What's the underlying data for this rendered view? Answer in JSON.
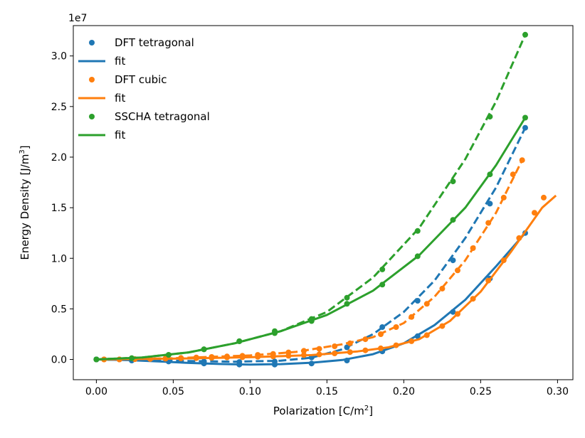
{
  "chart_data": {
    "type": "line",
    "xlabel": "Polarization [C/m",
    "xlabel_sup": "2",
    "xlabel_end": "]",
    "ylabel": "Energy Density [J/m",
    "ylabel_sup": "3",
    "ylabel_end": "]",
    "y_offset_text": "1e7",
    "xlim": [
      -0.015,
      0.31
    ],
    "ylim": [
      -0.2,
      3.3
    ],
    "x_ticks": [
      0.0,
      0.05,
      0.1,
      0.15,
      0.2,
      0.25,
      0.3
    ],
    "x_tick_labels": [
      "0.00",
      "0.05",
      "0.10",
      "0.15",
      "0.20",
      "0.25",
      "0.30"
    ],
    "y_ticks": [
      0.0,
      0.5,
      1.0,
      1.5,
      2.0,
      2.5,
      3.0
    ],
    "y_tick_labels": [
      "0.0",
      "0.5",
      "1.0",
      "1.5",
      "2.0",
      "2.5",
      "3.0"
    ],
    "grid": false,
    "legend_position": "top-left",
    "colors": {
      "blue": "#1f77b4",
      "orange": "#ff7f0e",
      "green": "#2ca02c"
    },
    "legend": [
      {
        "label": "DFT tetragonal",
        "kind": "marker",
        "color": "#1f77b4"
      },
      {
        "label": "fit",
        "kind": "line",
        "color": "#1f77b4"
      },
      {
        "label": "DFT cubic",
        "kind": "marker",
        "color": "#ff7f0e"
      },
      {
        "label": "fit",
        "kind": "line",
        "color": "#ff7f0e"
      },
      {
        "label": "SSCHA tetragonal",
        "kind": "marker",
        "color": "#2ca02c"
      },
      {
        "label": "fit",
        "kind": "line",
        "color": "#2ca02c"
      }
    ],
    "series": [
      {
        "name": "DFT tetragonal",
        "color": "#1f77b4",
        "style": "solid",
        "points": [
          [
            0.0,
            0.0
          ],
          [
            0.023,
            -0.01
          ],
          [
            0.047,
            -0.02
          ],
          [
            0.07,
            -0.04
          ],
          [
            0.093,
            -0.05
          ],
          [
            0.116,
            -0.05
          ],
          [
            0.14,
            -0.04
          ],
          [
            0.163,
            -0.01
          ],
          [
            0.186,
            0.08
          ],
          [
            0.209,
            0.23
          ],
          [
            0.232,
            0.47
          ],
          [
            0.256,
            0.8
          ],
          [
            0.279,
            1.25
          ]
        ],
        "fit": [
          [
            0.0,
            0.0
          ],
          [
            0.02,
            -0.006
          ],
          [
            0.04,
            -0.019
          ],
          [
            0.06,
            -0.034
          ],
          [
            0.08,
            -0.045
          ],
          [
            0.1,
            -0.05
          ],
          [
            0.12,
            -0.046
          ],
          [
            0.14,
            -0.032
          ],
          [
            0.16,
            -0.005
          ],
          [
            0.18,
            0.052
          ],
          [
            0.2,
            0.16
          ],
          [
            0.22,
            0.34
          ],
          [
            0.24,
            0.59
          ],
          [
            0.26,
            0.92
          ],
          [
            0.279,
            1.25
          ]
        ]
      },
      {
        "name": "DFT tetragonal",
        "color": "#1f77b4",
        "style": "dashed",
        "points": [
          [
            0.0,
            0.0
          ],
          [
            0.023,
            -0.005
          ],
          [
            0.047,
            -0.01
          ],
          [
            0.07,
            -0.02
          ],
          [
            0.093,
            -0.025
          ],
          [
            0.116,
            -0.02
          ],
          [
            0.14,
            0.02
          ],
          [
            0.163,
            0.12
          ],
          [
            0.186,
            0.32
          ],
          [
            0.209,
            0.58
          ],
          [
            0.232,
            0.98
          ],
          [
            0.256,
            1.54
          ],
          [
            0.279,
            2.29
          ]
        ],
        "fit": [
          [
            0.0,
            0.0
          ],
          [
            0.03,
            -0.006
          ],
          [
            0.06,
            -0.015
          ],
          [
            0.09,
            -0.022
          ],
          [
            0.12,
            -0.012
          ],
          [
            0.14,
            0.018
          ],
          [
            0.16,
            0.1
          ],
          [
            0.18,
            0.25
          ],
          [
            0.2,
            0.47
          ],
          [
            0.22,
            0.78
          ],
          [
            0.24,
            1.2
          ],
          [
            0.26,
            1.7
          ],
          [
            0.279,
            2.29
          ]
        ]
      },
      {
        "name": "DFT cubic",
        "color": "#ff7f0e",
        "style": "solid",
        "points": [
          [
            0.005,
            0.0
          ],
          [
            0.015,
            0.0
          ],
          [
            0.025,
            0.003
          ],
          [
            0.035,
            0.005
          ],
          [
            0.045,
            0.008
          ],
          [
            0.055,
            0.01
          ],
          [
            0.065,
            0.013
          ],
          [
            0.075,
            0.016
          ],
          [
            0.085,
            0.02
          ],
          [
            0.095,
            0.022
          ],
          [
            0.105,
            0.026
          ],
          [
            0.115,
            0.03
          ],
          [
            0.125,
            0.036
          ],
          [
            0.135,
            0.043
          ],
          [
            0.145,
            0.05
          ],
          [
            0.155,
            0.06
          ],
          [
            0.165,
            0.073
          ],
          [
            0.175,
            0.09
          ],
          [
            0.185,
            0.11
          ],
          [
            0.195,
            0.14
          ],
          [
            0.205,
            0.18
          ],
          [
            0.215,
            0.24
          ],
          [
            0.225,
            0.33
          ],
          [
            0.235,
            0.45
          ],
          [
            0.245,
            0.6
          ],
          [
            0.255,
            0.78
          ],
          [
            0.265,
            0.98
          ],
          [
            0.275,
            1.2
          ],
          [
            0.285,
            1.45
          ],
          [
            0.291,
            1.6
          ]
        ],
        "fit": [
          [
            0.0,
            0.0
          ],
          [
            0.05,
            0.008
          ],
          [
            0.1,
            0.022
          ],
          [
            0.14,
            0.043
          ],
          [
            0.17,
            0.08
          ],
          [
            0.19,
            0.12
          ],
          [
            0.21,
            0.2
          ],
          [
            0.23,
            0.38
          ],
          [
            0.25,
            0.67
          ],
          [
            0.27,
            1.07
          ],
          [
            0.29,
            1.5
          ],
          [
            0.299,
            1.62
          ]
        ]
      },
      {
        "name": "DFT cubic",
        "color": "#ff7f0e",
        "style": "dashed",
        "points": [
          [
            0.005,
            0.0
          ],
          [
            0.015,
            0.0
          ],
          [
            0.025,
            0.003
          ],
          [
            0.035,
            0.006
          ],
          [
            0.045,
            0.01
          ],
          [
            0.055,
            0.015
          ],
          [
            0.065,
            0.02
          ],
          [
            0.075,
            0.025
          ],
          [
            0.085,
            0.03
          ],
          [
            0.095,
            0.036
          ],
          [
            0.105,
            0.045
          ],
          [
            0.115,
            0.055
          ],
          [
            0.125,
            0.07
          ],
          [
            0.135,
            0.085
          ],
          [
            0.145,
            0.105
          ],
          [
            0.155,
            0.13
          ],
          [
            0.165,
            0.16
          ],
          [
            0.175,
            0.2
          ],
          [
            0.185,
            0.25
          ],
          [
            0.195,
            0.32
          ],
          [
            0.205,
            0.42
          ],
          [
            0.215,
            0.55
          ],
          [
            0.225,
            0.7
          ],
          [
            0.235,
            0.88
          ],
          [
            0.245,
            1.1
          ],
          [
            0.255,
            1.35
          ],
          [
            0.265,
            1.6
          ],
          [
            0.271,
            1.83
          ],
          [
            0.277,
            1.97
          ]
        ],
        "fit": [
          [
            0.0,
            0.0
          ],
          [
            0.05,
            0.012
          ],
          [
            0.1,
            0.04
          ],
          [
            0.13,
            0.075
          ],
          [
            0.16,
            0.15
          ],
          [
            0.18,
            0.22
          ],
          [
            0.2,
            0.36
          ],
          [
            0.22,
            0.62
          ],
          [
            0.24,
            0.98
          ],
          [
            0.26,
            1.45
          ],
          [
            0.277,
            1.97
          ]
        ]
      },
      {
        "name": "SSCHA tetragonal",
        "color": "#2ca02c",
        "style": "solid",
        "points": [
          [
            0.0,
            0.0
          ],
          [
            0.023,
            0.013
          ],
          [
            0.047,
            0.045
          ],
          [
            0.07,
            0.1
          ],
          [
            0.093,
            0.18
          ],
          [
            0.116,
            0.28
          ],
          [
            0.14,
            0.38
          ],
          [
            0.163,
            0.55
          ],
          [
            0.186,
            0.74
          ],
          [
            0.209,
            1.02
          ],
          [
            0.232,
            1.38
          ],
          [
            0.256,
            1.83
          ],
          [
            0.279,
            2.39
          ]
        ],
        "fit": [
          [
            0.0,
            0.0
          ],
          [
            0.03,
            0.02
          ],
          [
            0.06,
            0.07
          ],
          [
            0.09,
            0.16
          ],
          [
            0.12,
            0.28
          ],
          [
            0.15,
            0.44
          ],
          [
            0.18,
            0.68
          ],
          [
            0.21,
            1.03
          ],
          [
            0.24,
            1.5
          ],
          [
            0.26,
            1.92
          ],
          [
            0.279,
            2.39
          ]
        ]
      },
      {
        "name": "SSCHA tetragonal",
        "color": "#2ca02c",
        "style": "dashed",
        "points": [
          [
            0.0,
            0.0
          ],
          [
            0.023,
            0.012
          ],
          [
            0.047,
            0.045
          ],
          [
            0.07,
            0.1
          ],
          [
            0.093,
            0.18
          ],
          [
            0.116,
            0.26
          ],
          [
            0.14,
            0.4
          ],
          [
            0.163,
            0.61
          ],
          [
            0.186,
            0.89
          ],
          [
            0.209,
            1.27
          ],
          [
            0.232,
            1.76
          ],
          [
            0.256,
            2.4
          ],
          [
            0.279,
            3.21
          ]
        ],
        "fit": [
          [
            0.0,
            0.0
          ],
          [
            0.03,
            0.02
          ],
          [
            0.06,
            0.07
          ],
          [
            0.09,
            0.16
          ],
          [
            0.12,
            0.28
          ],
          [
            0.15,
            0.47
          ],
          [
            0.18,
            0.81
          ],
          [
            0.21,
            1.3
          ],
          [
            0.24,
            1.98
          ],
          [
            0.26,
            2.55
          ],
          [
            0.279,
            3.21
          ]
        ]
      }
    ]
  }
}
